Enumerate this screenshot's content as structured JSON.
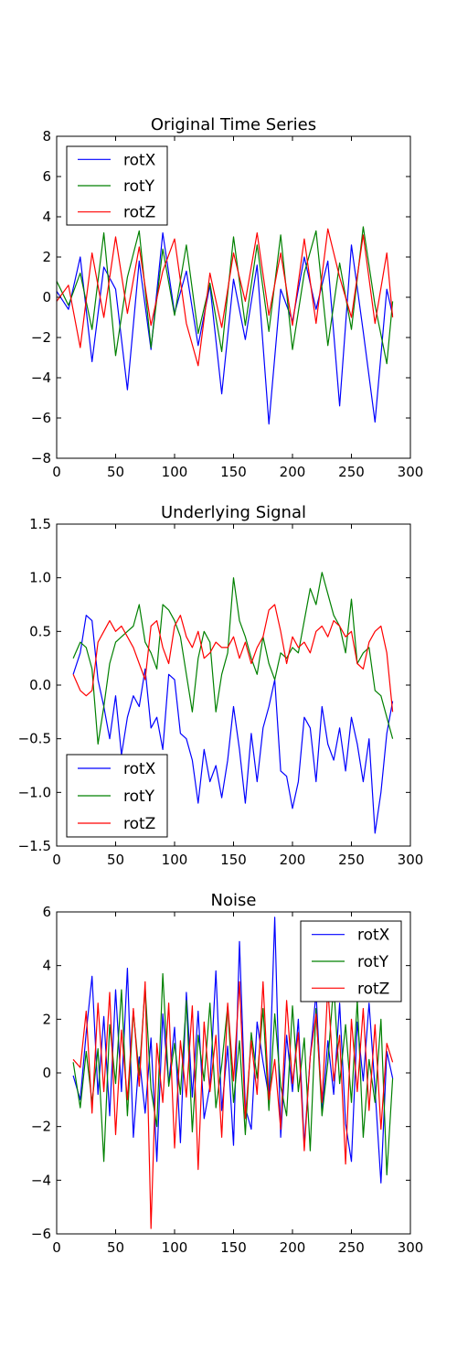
{
  "figure": {
    "background": "#ffffff"
  },
  "colors": {
    "rotX": "#0000ff",
    "rotY": "#008000",
    "rotZ": "#ff0000"
  },
  "chart_data": [
    {
      "type": "line",
      "title": "Original Time Series",
      "xlabel": "",
      "ylabel": "",
      "xlim": [
        0,
        300
      ],
      "ylim": [
        -8,
        8
      ],
      "xticks": [
        0,
        50,
        100,
        150,
        200,
        250,
        300
      ],
      "yticks": [
        -8,
        -6,
        -4,
        -2,
        0,
        2,
        4,
        6,
        8
      ],
      "grid": false,
      "legend": {
        "placement": "upper-left",
        "entries": [
          "rotX",
          "rotY",
          "rotZ"
        ]
      },
      "x": [
        0,
        10,
        20,
        30,
        40,
        50,
        60,
        70,
        80,
        90,
        100,
        110,
        120,
        130,
        140,
        150,
        160,
        170,
        180,
        190,
        200,
        210,
        220,
        230,
        240,
        250,
        260,
        270,
        280,
        285
      ],
      "series": [
        {
          "name": "rotX",
          "values": [
            0.3,
            -0.6,
            2.0,
            -3.2,
            1.5,
            0.4,
            -4.6,
            1.8,
            -2.6,
            3.2,
            -0.8,
            1.3,
            -2.4,
            0.6,
            -4.8,
            0.9,
            -2.1,
            1.6,
            -6.3,
            0.4,
            -1.2,
            2.0,
            -0.6,
            1.8,
            -5.4,
            2.6,
            -1.7,
            -6.2,
            0.4,
            -0.9
          ]
        },
        {
          "name": "rotY",
          "values": [
            0.8,
            -0.4,
            1.2,
            -1.6,
            3.2,
            -2.9,
            1.0,
            3.3,
            -2.5,
            2.4,
            -0.9,
            2.6,
            -1.8,
            0.7,
            -2.7,
            3.0,
            -1.4,
            2.6,
            -1.7,
            3.1,
            -2.6,
            1.2,
            3.3,
            -2.4,
            1.7,
            -1.6,
            3.5,
            -0.4,
            -3.3,
            -0.2
          ]
        },
        {
          "name": "rotZ",
          "values": [
            -0.2,
            0.6,
            -2.5,
            2.2,
            -1.0,
            3.0,
            -0.8,
            2.5,
            -1.4,
            1.3,
            2.9,
            -1.3,
            -3.4,
            1.2,
            -1.5,
            2.2,
            -0.2,
            3.2,
            -0.9,
            2.2,
            -1.4,
            2.9,
            -1.3,
            3.4,
            1.0,
            -1.0,
            3.1,
            -1.3,
            2.2,
            -1.0
          ]
        }
      ]
    },
    {
      "type": "line",
      "title": "Underlying Signal",
      "xlabel": "",
      "ylabel": "",
      "xlim": [
        0,
        300
      ],
      "ylim": [
        -1.5,
        1.5
      ],
      "xticks": [
        0,
        50,
        100,
        150,
        200,
        250,
        300
      ],
      "yticks": [
        -1.5,
        -1.0,
        -0.5,
        0.0,
        0.5,
        1.0,
        1.5
      ],
      "grid": false,
      "legend": {
        "placement": "lower-left",
        "entries": [
          "rotX",
          "rotY",
          "rotZ"
        ]
      },
      "x": [
        14,
        20,
        25,
        30,
        35,
        40,
        45,
        50,
        55,
        60,
        65,
        70,
        75,
        80,
        85,
        90,
        95,
        100,
        105,
        110,
        115,
        120,
        125,
        130,
        135,
        140,
        145,
        150,
        155,
        160,
        165,
        170,
        175,
        180,
        185,
        190,
        195,
        200,
        205,
        210,
        215,
        220,
        225,
        230,
        235,
        240,
        245,
        250,
        255,
        260,
        265,
        270,
        275,
        280,
        285
      ],
      "series": [
        {
          "name": "rotX",
          "values": [
            0.1,
            0.3,
            0.65,
            0.6,
            0.05,
            -0.2,
            -0.5,
            -0.1,
            -0.65,
            -0.3,
            -0.1,
            -0.2,
            0.15,
            -0.4,
            -0.3,
            -0.6,
            0.1,
            0.05,
            -0.45,
            -0.5,
            -0.7,
            -1.1,
            -0.6,
            -0.9,
            -0.75,
            -1.05,
            -0.7,
            -0.2,
            -0.6,
            -1.1,
            -0.45,
            -0.9,
            -0.4,
            -0.2,
            0.05,
            -0.8,
            -0.85,
            -1.15,
            -0.9,
            -0.3,
            -0.4,
            -0.9,
            -0.2,
            -0.55,
            -0.7,
            -0.4,
            -0.8,
            -0.3,
            -0.55,
            -0.9,
            -0.5,
            -1.38,
            -1.0,
            -0.45,
            -0.15
          ]
        },
        {
          "name": "rotY",
          "values": [
            0.25,
            0.4,
            0.35,
            0.15,
            -0.55,
            -0.2,
            0.2,
            0.4,
            0.45,
            0.5,
            0.55,
            0.75,
            0.4,
            0.3,
            0.15,
            0.75,
            0.7,
            0.6,
            0.45,
            0.1,
            -0.25,
            0.25,
            0.5,
            0.4,
            -0.25,
            0.1,
            0.3,
            1.0,
            0.6,
            0.45,
            0.25,
            0.1,
            0.45,
            0.2,
            0.05,
            0.3,
            0.25,
            0.35,
            0.3,
            0.6,
            0.9,
            0.75,
            1.05,
            0.85,
            0.65,
            0.55,
            0.3,
            0.8,
            0.2,
            0.3,
            0.35,
            -0.05,
            -0.1,
            -0.3,
            -0.5
          ]
        },
        {
          "name": "rotZ",
          "values": [
            0.1,
            -0.05,
            -0.1,
            -0.05,
            0.4,
            0.5,
            0.6,
            0.5,
            0.55,
            0.45,
            0.35,
            0.2,
            0.05,
            0.55,
            0.6,
            0.35,
            0.2,
            0.55,
            0.65,
            0.45,
            0.35,
            0.5,
            0.25,
            0.3,
            0.4,
            0.35,
            0.35,
            0.45,
            0.25,
            0.4,
            0.2,
            0.35,
            0.45,
            0.7,
            0.75,
            0.5,
            0.2,
            0.45,
            0.35,
            0.4,
            0.3,
            0.5,
            0.55,
            0.45,
            0.6,
            0.55,
            0.45,
            0.5,
            0.2,
            0.15,
            0.4,
            0.5,
            0.55,
            0.3,
            -0.25
          ]
        }
      ]
    },
    {
      "type": "line",
      "title": "Noise",
      "xlabel": "",
      "ylabel": "",
      "xlim": [
        0,
        300
      ],
      "ylim": [
        -6,
        6
      ],
      "xticks": [
        0,
        50,
        100,
        150,
        200,
        250,
        300
      ],
      "yticks": [
        -6,
        -4,
        -2,
        0,
        2,
        4,
        6
      ],
      "grid": false,
      "legend": {
        "placement": "upper-right",
        "entries": [
          "rotX",
          "rotY",
          "rotZ"
        ]
      },
      "x": [
        14,
        20,
        25,
        30,
        35,
        40,
        45,
        50,
        55,
        60,
        65,
        70,
        75,
        80,
        85,
        90,
        95,
        100,
        105,
        110,
        115,
        120,
        125,
        130,
        135,
        140,
        145,
        150,
        155,
        160,
        165,
        170,
        175,
        180,
        185,
        190,
        195,
        200,
        205,
        210,
        215,
        220,
        225,
        230,
        235,
        240,
        245,
        250,
        255,
        260,
        265,
        270,
        275,
        280,
        285
      ],
      "series": [
        {
          "name": "rotX",
          "values": [
            -0.1,
            -1.0,
            1.5,
            3.6,
            -0.8,
            2.1,
            -1.6,
            3.1,
            -0.7,
            3.9,
            -2.4,
            0.6,
            -1.5,
            1.3,
            -3.3,
            2.2,
            -0.4,
            1.7,
            -2.6,
            3.0,
            -0.9,
            2.3,
            -1.7,
            -0.5,
            3.8,
            -1.4,
            1.0,
            -2.7,
            4.9,
            -1.3,
            -2.1,
            1.9,
            0.4,
            -0.9,
            5.8,
            -2.4,
            1.4,
            -0.7,
            2.0,
            -2.7,
            0.6,
            3.0,
            -1.5,
            1.2,
            -0.8,
            2.6,
            -1.9,
            -3.3,
            1.9,
            -0.3,
            2.6,
            -0.6,
            -4.1,
            0.8,
            -0.2
          ]
        },
        {
          "name": "rotY",
          "values": [
            0.4,
            -1.3,
            0.8,
            -1.1,
            0.9,
            -3.3,
            1.8,
            -0.4,
            3.1,
            -1.6,
            2.3,
            -0.1,
            3.2,
            -0.6,
            -2.0,
            3.7,
            -0.5,
            1.1,
            -0.8,
            2.7,
            -2.2,
            1.4,
            -0.3,
            2.6,
            -1.3,
            0.3,
            2.5,
            -1.1,
            1.2,
            -2.3,
            1.5,
            -0.2,
            2.4,
            -1.4,
            2.2,
            -0.5,
            -1.6,
            2.5,
            -0.7,
            1.3,
            -2.9,
            2.4,
            -1.6,
            0.4,
            3.3,
            -0.4,
            1.8,
            -1.1,
            2.7,
            -2.4,
            0.5,
            -1.1,
            2.0,
            -3.8,
            -0.2
          ]
        },
        {
          "name": "rotZ",
          "values": [
            0.5,
            0.2,
            2.3,
            -1.5,
            2.6,
            -0.7,
            3.0,
            -2.3,
            1.6,
            -1.0,
            2.4,
            -0.5,
            3.4,
            -5.8,
            1.1,
            -1.1,
            2.6,
            -2.8,
            1.2,
            -0.9,
            2.5,
            -3.6,
            1.9,
            -0.7,
            1.4,
            -2.4,
            2.6,
            -0.3,
            3.4,
            -1.7,
            1.2,
            -0.8,
            3.4,
            -1.0,
            0.5,
            -2.1,
            2.7,
            -0.4,
            1.5,
            -2.9,
            0.6,
            2.2,
            -1.1,
            3.2,
            -0.3,
            1.4,
            -3.4,
            2.0,
            -0.7,
            2.4,
            -1.4,
            1.8,
            -2.1,
            1.1,
            0.4
          ]
        }
      ]
    }
  ]
}
